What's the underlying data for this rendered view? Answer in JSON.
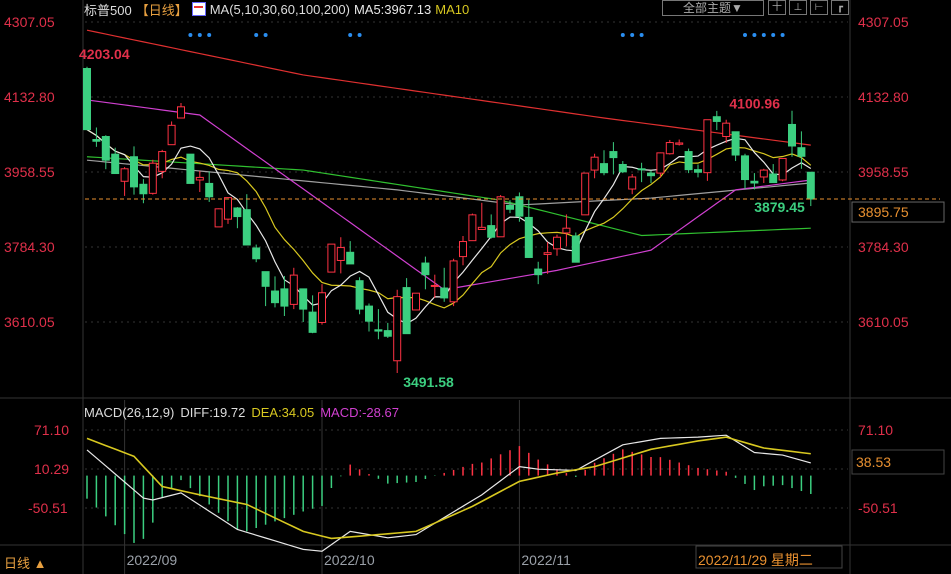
{
  "header": {
    "title": "标普500",
    "period_tag": "【日线】",
    "ma_label": "MA(5,10,30,60,100,200)",
    "ma5": "MA5:3967.13",
    "ma10": "MA10",
    "theme_button": "全部主题▼",
    "tools": [
      "十",
      "⊥",
      "⊢",
      "┏"
    ]
  },
  "macd_header": {
    "label": "MACD(26,12,9)",
    "diff": "DIFF:19.72",
    "dea": "DEA:34.05",
    "macd": "MACD:-28.67"
  },
  "footer": {
    "period": "日线 ▲",
    "cursor_date": "2022/11/29 星期二"
  },
  "colors": {
    "up": "#ff3344",
    "down": "#3ccf80",
    "ma5": "#e8e8e8",
    "ma10": "#d8c820",
    "ma30": "#d040d0",
    "ma60": "#30c030",
    "ma100": "#a0a0a0",
    "ma200": "#e03030",
    "diff": "#e8e8e8",
    "dea": "#d8c820",
    "axis_label": "#e0304a",
    "last_price": "#e89030",
    "marker": "#2a8ef0"
  },
  "chart_data": [
    {
      "type": "candlestick",
      "ylim": [
        3491.58,
        4307.05
      ],
      "y_ticks": [
        "4307.05",
        "4132.80",
        "3958.55",
        "3784.30",
        "3610.05"
      ],
      "x_ticks": [
        {
          "date": "2022-09-01",
          "label": "2022/09"
        },
        {
          "date": "2022-10-03",
          "label": "2022/10"
        },
        {
          "date": "2022-11-01",
          "label": "2022/11"
        }
      ],
      "last_price": "3895.75",
      "annotations": [
        {
          "date": "2022-08-26",
          "value": "4203.04",
          "kind": "high"
        },
        {
          "date": "2022-12-13",
          "value": "4100.96",
          "kind": "high"
        },
        {
          "date": "2022-10-13",
          "value": "3491.58",
          "kind": "low"
        },
        {
          "date": "2022-12-15",
          "value": "3879.45",
          "kind": "low"
        }
      ],
      "event_markers": [
        "2022-09-13",
        "2022-09-14",
        "2022-09-15",
        "2022-09-22",
        "2022-09-23",
        "2022-10-06",
        "2022-10-07",
        "2022-11-16",
        "2022-11-17",
        "2022-11-18",
        "2022-12-06",
        "2022-12-07",
        "2022-12-08",
        "2022-12-09",
        "2022-12-12"
      ],
      "dates": [
        "2022-08-26",
        "2022-08-29",
        "2022-08-30",
        "2022-08-31",
        "2022-09-01",
        "2022-09-02",
        "2022-09-06",
        "2022-09-07",
        "2022-09-08",
        "2022-09-09",
        "2022-09-12",
        "2022-09-13",
        "2022-09-14",
        "2022-09-15",
        "2022-09-16",
        "2022-09-19",
        "2022-09-20",
        "2022-09-21",
        "2022-09-22",
        "2022-09-23",
        "2022-09-26",
        "2022-09-27",
        "2022-09-28",
        "2022-09-29",
        "2022-09-30",
        "2022-10-03",
        "2022-10-04",
        "2022-10-05",
        "2022-10-06",
        "2022-10-07",
        "2022-10-10",
        "2022-10-11",
        "2022-10-12",
        "2022-10-13",
        "2022-10-14",
        "2022-10-17",
        "2022-10-18",
        "2022-10-19",
        "2022-10-20",
        "2022-10-21",
        "2022-10-24",
        "2022-10-25",
        "2022-10-26",
        "2022-10-27",
        "2022-10-28",
        "2022-10-31",
        "2022-11-01",
        "2022-11-02",
        "2022-11-03",
        "2022-11-04",
        "2022-11-07",
        "2022-11-08",
        "2022-11-09",
        "2022-11-10",
        "2022-11-11",
        "2022-11-14",
        "2022-11-15",
        "2022-11-16",
        "2022-11-17",
        "2022-11-18",
        "2022-11-21",
        "2022-11-22",
        "2022-11-23",
        "2022-11-25",
        "2022-11-28",
        "2022-11-29",
        "2022-11-30",
        "2022-12-01",
        "2022-12-02",
        "2022-12-05",
        "2022-12-06",
        "2022-12-07",
        "2022-12-08",
        "2022-12-09",
        "2022-12-12",
        "2022-12-13",
        "2022-12-14",
        "2022-12-15"
      ],
      "ohlc": [
        [
          4199,
          4203.04,
          4057,
          4057
        ],
        [
          4034,
          4062,
          4017,
          4030
        ],
        [
          4041,
          4044,
          3965,
          3986
        ],
        [
          4000,
          4015,
          3954,
          3955
        ],
        [
          3937,
          3970,
          3903,
          3966
        ],
        [
          3994,
          4018,
          3906,
          3924
        ],
        [
          3930,
          3942,
          3886,
          3908
        ],
        [
          3909,
          3987,
          3906,
          3979
        ],
        [
          3960,
          4010,
          3944,
          4006
        ],
        [
          4022,
          4076,
          4022,
          4067
        ],
        [
          4084,
          4119,
          4083,
          4110
        ],
        [
          4000,
          4000,
          3933,
          3932
        ],
        [
          3940,
          3961,
          3912,
          3946
        ],
        [
          3932,
          3960,
          3889,
          3901
        ],
        [
          3831,
          3874,
          3838,
          3873
        ],
        [
          3849,
          3900,
          3838,
          3899
        ],
        [
          3875,
          3877,
          3828,
          3855
        ],
        [
          3871,
          3907,
          3789,
          3789
        ],
        [
          3782,
          3790,
          3749,
          3757
        ],
        [
          3727,
          3727,
          3647,
          3693
        ],
        [
          3682,
          3716,
          3644,
          3655
        ],
        [
          3687,
          3717,
          3624,
          3647
        ],
        [
          3651,
          3736,
          3640,
          3719
        ],
        [
          3687,
          3687,
          3610,
          3640
        ],
        [
          3633,
          3672,
          3584,
          3586
        ],
        [
          3609,
          3698,
          3604,
          3678
        ],
        [
          3726,
          3791,
          3726,
          3791
        ],
        [
          3753,
          3807,
          3723,
          3783
        ],
        [
          3772,
          3798,
          3745,
          3745
        ],
        [
          3706,
          3714,
          3628,
          3640
        ],
        [
          3647,
          3653,
          3588,
          3612
        ],
        [
          3592,
          3640,
          3570,
          3589
        ],
        [
          3590,
          3608,
          3573,
          3577
        ],
        [
          3520,
          3685,
          3491.58,
          3669
        ],
        [
          3690,
          3712,
          3583,
          3583
        ],
        [
          3638,
          3677,
          3638,
          3677
        ],
        [
          3747,
          3762,
          3686,
          3720
        ],
        [
          3695,
          3720,
          3666,
          3695
        ],
        [
          3689,
          3736,
          3657,
          3666
        ],
        [
          3657,
          3757,
          3647,
          3752
        ],
        [
          3762,
          3810,
          3742,
          3797
        ],
        [
          3799,
          3862,
          3799,
          3859
        ],
        [
          3825,
          3887,
          3824,
          3830
        ],
        [
          3834,
          3860,
          3804,
          3807
        ],
        [
          3808,
          3905,
          3808,
          3901
        ],
        [
          3881,
          3893,
          3863,
          3872
        ],
        [
          3901,
          3911,
          3843,
          3856
        ],
        [
          3853,
          3894,
          3759,
          3760
        ],
        [
          3733,
          3750,
          3698,
          3720
        ],
        [
          3767,
          3796,
          3722,
          3771
        ],
        [
          3780,
          3813,
          3764,
          3807
        ],
        [
          3817,
          3860,
          3786,
          3828
        ],
        [
          3810,
          3818,
          3749,
          3749
        ],
        [
          3859,
          3956,
          3859,
          3956
        ],
        [
          3963,
          4001,
          3944,
          3993
        ],
        [
          3978,
          4009,
          3951,
          3957
        ],
        [
          4006,
          4028,
          3953,
          3992
        ],
        [
          3976,
          3984,
          3956,
          3959
        ],
        [
          3919,
          3954,
          3907,
          3947
        ],
        [
          3966,
          3980,
          3935,
          3965
        ],
        [
          3956,
          3962,
          3933,
          3950
        ],
        [
          3956,
          4004,
          3947,
          4003
        ],
        [
          4001,
          4033,
          3999,
          4027
        ],
        [
          4023,
          4034,
          4020,
          4026
        ],
        [
          4006,
          4013,
          3956,
          3964
        ],
        [
          3964,
          3976,
          3946,
          3958
        ],
        [
          3957,
          4080,
          3938,
          4080
        ],
        [
          4087,
          4100.5,
          4056,
          4076
        ],
        [
          4041,
          4080,
          4026,
          4072
        ],
        [
          4052,
          4052,
          3984,
          3998
        ],
        [
          3996,
          4001,
          3919,
          3941
        ],
        [
          3937,
          3956,
          3918,
          3933
        ],
        [
          3947,
          3966,
          3933,
          3963
        ],
        [
          3954,
          3977,
          3933,
          3934
        ],
        [
          3940,
          3990,
          3937,
          3990
        ],
        [
          4069,
          4100.96,
          3994,
          4019
        ],
        [
          4015,
          4053,
          3966,
          3995
        ],
        [
          3958,
          3958,
          3879.45,
          3895.75
        ]
      ],
      "moving_averages": {
        "ma30": [
          [
            "2022-08-26",
            4126
          ],
          [
            "2022-09-14",
            4091
          ],
          [
            "2022-10-20",
            3685
          ],
          [
            "2022-11-07",
            3730
          ],
          [
            "2022-11-21",
            3777
          ],
          [
            "2022-12-05",
            3917
          ],
          [
            "2022-12-15",
            3940
          ]
        ],
        "ma60": [
          [
            "2022-08-26",
            3994
          ],
          [
            "2022-09-29",
            3963
          ],
          [
            "2022-10-28",
            3893
          ],
          [
            "2022-11-18",
            3811
          ],
          [
            "2022-12-15",
            3828
          ]
        ],
        "ma100": [
          [
            "2022-08-26",
            3986
          ],
          [
            "2022-10-13",
            3917
          ],
          [
            "2022-11-01",
            3882
          ],
          [
            "2022-11-21",
            3898
          ],
          [
            "2022-12-15",
            3933
          ]
        ],
        "ma200": [
          [
            "2022-08-26",
            4288
          ],
          [
            "2022-09-29",
            4184
          ],
          [
            "2022-11-14",
            4084
          ],
          [
            "2022-12-15",
            4021
          ]
        ]
      }
    },
    {
      "type": "line+bar",
      "name": "MACD(26,12,9)",
      "y_ticks": [
        "71.10",
        "10.29",
        "-50.51"
      ],
      "ylim": [
        -120,
        75
      ],
      "current_value": "38.53",
      "diff": [
        [
          "2022-08-26",
          40
        ],
        [
          "2022-09-06",
          -35
        ],
        [
          "2022-09-07",
          -38
        ],
        [
          "2022-09-12",
          -27
        ],
        [
          "2022-09-20",
          -84
        ],
        [
          "2022-09-29",
          -115
        ],
        [
          "2022-10-03",
          -118
        ],
        [
          "2022-10-06",
          -87
        ],
        [
          "2022-10-12",
          -97
        ],
        [
          "2022-10-17",
          -92
        ],
        [
          "2022-10-26",
          -30
        ],
        [
          "2022-11-01",
          14
        ],
        [
          "2022-11-03",
          10
        ],
        [
          "2022-11-09",
          8
        ],
        [
          "2022-11-16",
          48
        ],
        [
          "2022-11-22",
          58
        ],
        [
          "2022-11-29",
          60
        ],
        [
          "2022-12-02",
          63
        ],
        [
          "2022-12-07",
          36
        ],
        [
          "2022-12-12",
          32
        ],
        [
          "2022-12-15",
          19.72
        ]
      ],
      "dea": [
        [
          "2022-08-26",
          58
        ],
        [
          "2022-09-02",
          30
        ],
        [
          "2022-09-08",
          -17
        ],
        [
          "2022-09-14",
          -30
        ],
        [
          "2022-09-21",
          -45
        ],
        [
          "2022-09-29",
          -87
        ],
        [
          "2022-10-04",
          -98
        ],
        [
          "2022-10-11",
          -92
        ],
        [
          "2022-10-17",
          -87
        ],
        [
          "2022-10-25",
          -48
        ],
        [
          "2022-11-01",
          -9
        ],
        [
          "2022-11-07",
          4
        ],
        [
          "2022-11-11",
          14
        ],
        [
          "2022-11-21",
          41
        ],
        [
          "2022-11-29",
          54
        ],
        [
          "2022-12-02",
          60
        ],
        [
          "2022-12-08",
          43
        ],
        [
          "2022-12-15",
          34.05
        ]
      ]
    }
  ]
}
